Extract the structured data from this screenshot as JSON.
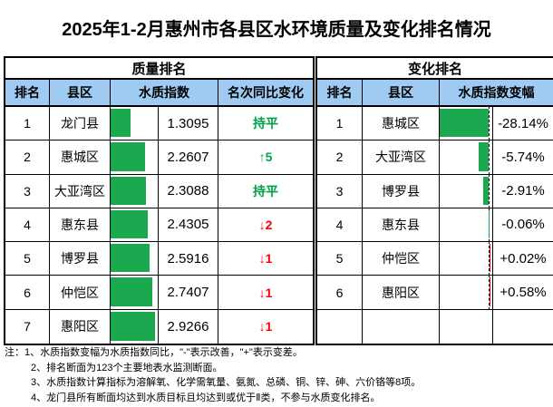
{
  "title": "2025年1-2月惠州市各县区水环境质量及变化排名情况",
  "colors": {
    "header_fill": "#9FCBF2",
    "bar_green": "#1BA84F",
    "bar_red": "#FF0000",
    "text_green": "#00A04A",
    "text_red": "#FF0000",
    "border": "#000000"
  },
  "left_table": {
    "title": "质量排名",
    "columns": [
      "排名",
      "县区",
      "水质指数",
      "名次同比变化"
    ],
    "rows": [
      {
        "rank": "1",
        "district": "龙门县",
        "index": "1.3095",
        "change": "持平",
        "change_dir": "flat"
      },
      {
        "rank": "2",
        "district": "惠城区",
        "index": "2.2607",
        "change": "↑5",
        "change_dir": "up"
      },
      {
        "rank": "3",
        "district": "大亚湾区",
        "index": "2.3088",
        "change": "持平",
        "change_dir": "flat"
      },
      {
        "rank": "4",
        "district": "惠东县",
        "index": "2.4305",
        "change": "↓2",
        "change_dir": "down"
      },
      {
        "rank": "5",
        "district": "博罗县",
        "index": "2.5916",
        "change": "↓1",
        "change_dir": "down"
      },
      {
        "rank": "6",
        "district": "仲恺区",
        "index": "2.7407",
        "change": "↓1",
        "change_dir": "down"
      },
      {
        "rank": "7",
        "district": "惠阳区",
        "index": "2.9266",
        "change": "↓1",
        "change_dir": "down"
      }
    ]
  },
  "right_table": {
    "title": "变化排名",
    "columns": [
      "排名",
      "县区",
      "水质指数变幅"
    ],
    "rows": [
      {
        "rank": "1",
        "district": "惠城区",
        "delta": "-28.14%",
        "value": -28.14
      },
      {
        "rank": "2",
        "district": "大亚湾区",
        "delta": "-5.74%",
        "value": -5.74
      },
      {
        "rank": "3",
        "district": "博罗县",
        "delta": "-2.91%",
        "value": -2.91
      },
      {
        "rank": "4",
        "district": "惠东县",
        "delta": "-0.06%",
        "value": -0.06
      },
      {
        "rank": "5",
        "district": "仲恺区",
        "delta": "+0.02%",
        "value": 0.02
      },
      {
        "rank": "6",
        "district": "惠阳区",
        "delta": "+0.58%",
        "value": 0.58
      },
      {
        "rank": "",
        "district": "",
        "delta": "",
        "value": null
      }
    ]
  },
  "notes": [
    "注：1、水质指数变幅为水质指数同比，\"-\"表示改善，\"+\"表示变差。",
    "2、排名断面为123个主要地表水监测断面。",
    "3、水质指数计算指标为溶解氧、化学需氧量、氨氮、总磷、铜、锌、砷、六价铬等8项。",
    "4、龙门县所有断面均达到水质目标且均达到或优于Ⅱ类，不参与水质变化排名。"
  ],
  "chart_data": [
    {
      "type": "table",
      "title": "质量排名",
      "columns": [
        "排名",
        "县区",
        "水质指数",
        "名次同比变化"
      ],
      "rows": [
        [
          1,
          "龙门县",
          1.3095,
          "持平"
        ],
        [
          2,
          "惠城区",
          2.2607,
          "↑5"
        ],
        [
          3,
          "大亚湾区",
          2.3088,
          "持平"
        ],
        [
          4,
          "惠东县",
          2.4305,
          "↓2"
        ],
        [
          5,
          "博罗县",
          2.5916,
          "↓1"
        ],
        [
          6,
          "仲恺区",
          2.7407,
          "↓1"
        ],
        [
          7,
          "惠阳区",
          2.9266,
          "↓1"
        ]
      ],
      "embedded_bars": {
        "column": "水质指数",
        "scale_min": 0,
        "scale_max": 2.9266,
        "bar_color": "#1BA84F"
      }
    },
    {
      "type": "table",
      "title": "变化排名",
      "columns": [
        "排名",
        "县区",
        "水质指数变幅"
      ],
      "rows": [
        [
          1,
          "惠城区",
          -28.14
        ],
        [
          2,
          "大亚湾区",
          -5.74
        ],
        [
          3,
          "博罗县",
          -2.91
        ],
        [
          4,
          "惠东县",
          -0.06
        ],
        [
          5,
          "仲恺区",
          0.02
        ],
        [
          6,
          "惠阳区",
          0.58
        ]
      ],
      "embedded_bars": {
        "column": "水质指数变幅",
        "unit": "%",
        "axis": "dashed zero line near right of cell; negative bars green extend left, positive bars red extend right",
        "scale_min": -28.14,
        "scale_max": 0.58
      }
    }
  ]
}
